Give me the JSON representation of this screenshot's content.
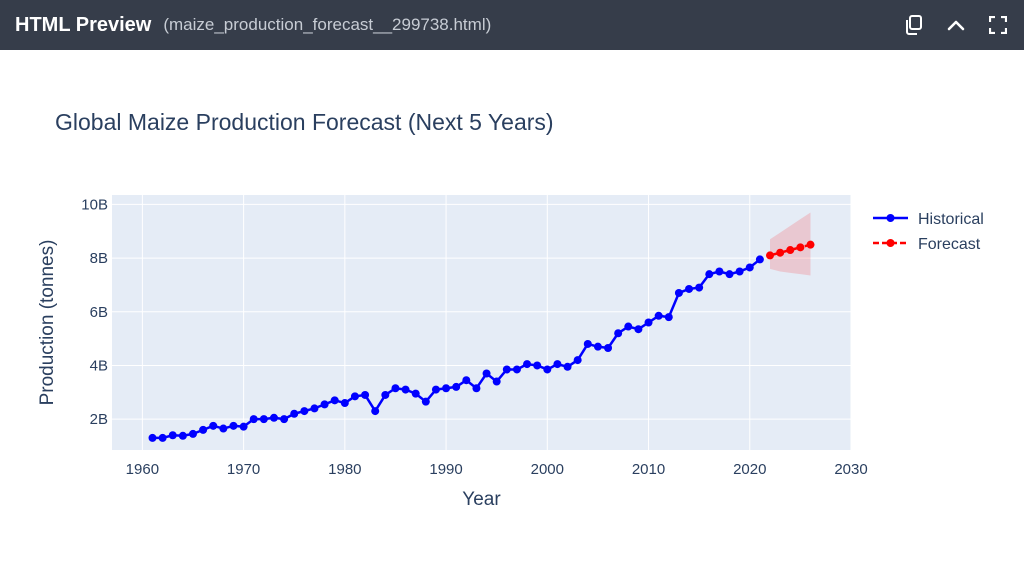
{
  "window": {
    "title": "HTML Preview",
    "file": "(maize_production_forecast__299738.html)",
    "icons": [
      "copy-icon",
      "chevron-up-icon",
      "fullscreen-icon"
    ]
  },
  "colors": {
    "historical": "#0000ff",
    "forecast": "#ff0000",
    "band": "rgba(255,0,0,0.15)",
    "plot_bg": "#e5ecf6",
    "text": "#2a3f5f"
  },
  "chart_data": {
    "type": "line",
    "title": "Global Maize Production Forecast (Next 5 Years)",
    "xlabel": "Year",
    "ylabel": "Production (tonnes)",
    "xlim": [
      1957,
      2030
    ],
    "ylim": [
      850000000.0,
      10350000000.0
    ],
    "xticks": [
      1960,
      1970,
      1980,
      1990,
      2000,
      2010,
      2020,
      2030
    ],
    "xtick_labels": [
      "1960",
      "1970",
      "1980",
      "1990",
      "2000",
      "2010",
      "2020",
      "2030"
    ],
    "yticks": [
      2000000000.0,
      4000000000.0,
      6000000000.0,
      8000000000.0,
      10000000000.0
    ],
    "ytick_labels": [
      "2B",
      "4B",
      "6B",
      "8B",
      "10B"
    ],
    "legend_position": "top-right",
    "series": [
      {
        "name": "Historical",
        "style": "solid",
        "x": [
          1961,
          1962,
          1963,
          1964,
          1965,
          1966,
          1967,
          1968,
          1969,
          1970,
          1971,
          1972,
          1973,
          1974,
          1975,
          1976,
          1977,
          1978,
          1979,
          1980,
          1981,
          1982,
          1983,
          1984,
          1985,
          1986,
          1987,
          1988,
          1989,
          1990,
          1991,
          1992,
          1993,
          1994,
          1995,
          1996,
          1997,
          1998,
          1999,
          2000,
          2001,
          2002,
          2003,
          2004,
          2005,
          2006,
          2007,
          2008,
          2009,
          2010,
          2011,
          2012,
          2013,
          2014,
          2015,
          2016,
          2017,
          2018,
          2019,
          2020,
          2021
        ],
        "values": [
          1300000000.0,
          1300000000.0,
          1400000000.0,
          1380000000.0,
          1450000000.0,
          1600000000.0,
          1750000000.0,
          1650000000.0,
          1750000000.0,
          1720000000.0,
          2000000000.0,
          2000000000.0,
          2050000000.0,
          2000000000.0,
          2200000000.0,
          2300000000.0,
          2400000000.0,
          2550000000.0,
          2700000000.0,
          2600000000.0,
          2850000000.0,
          2900000000.0,
          2300000000.0,
          2900000000.0,
          3150000000.0,
          3100000000.0,
          2950000000.0,
          2650000000.0,
          3100000000.0,
          3150000000.0,
          3200000000.0,
          3450000000.0,
          3150000000.0,
          3700000000.0,
          3400000000.0,
          3850000000.0,
          3850000000.0,
          4050000000.0,
          4000000000.0,
          3850000000.0,
          4050000000.0,
          3950000000.0,
          4200000000.0,
          4800000000.0,
          4700000000.0,
          4650000000.0,
          5200000000.0,
          5450000000.0,
          5350000000.0,
          5600000000.0,
          5850000000.0,
          5800000000.0,
          6700000000.0,
          6850000000.0,
          6900000000.0,
          7400000000.0,
          7500000000.0,
          7400000000.0,
          7500000000.0,
          7650000000.0,
          7950000000.0
        ]
      },
      {
        "name": "Forecast",
        "style": "dash",
        "x": [
          2022,
          2023,
          2024,
          2025,
          2026
        ],
        "values": [
          8100000000.0,
          8200000000.0,
          8300000000.0,
          8400000000.0,
          8500000000.0
        ],
        "lower": [
          7600000000.0,
          7500000000.0,
          7450000000.0,
          7400000000.0,
          7350000000.0
        ],
        "upper": [
          8700000000.0,
          8950000000.0,
          9200000000.0,
          9450000000.0,
          9700000000.0
        ]
      }
    ]
  }
}
